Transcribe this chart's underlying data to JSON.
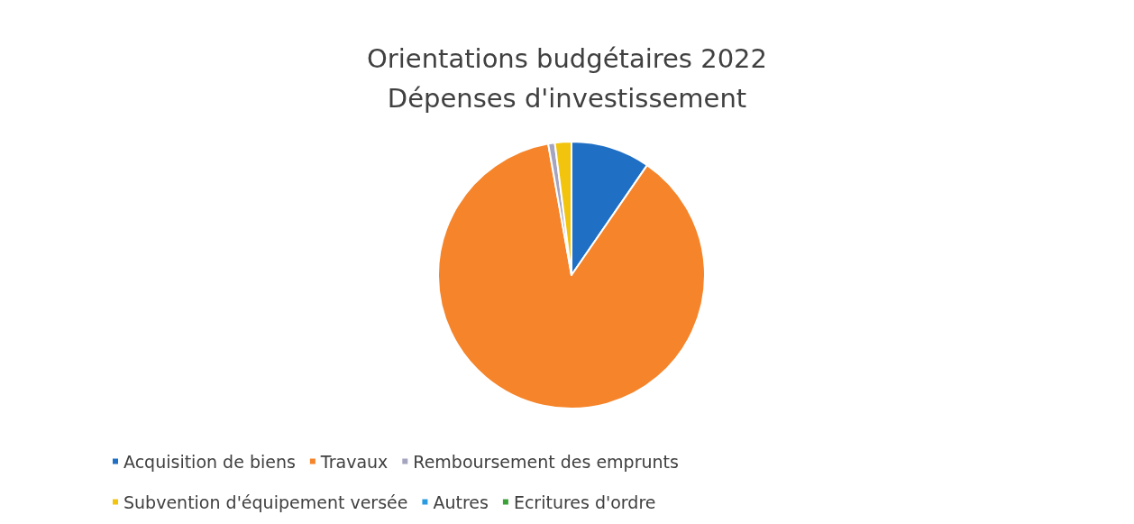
{
  "chart_data": {
    "type": "pie",
    "title": "Orientations budgétaires 2022\nDépenses d'investissement",
    "categories": [
      "Acquisition de biens",
      "Travaux",
      "Remboursement des emprunts",
      "Subvention d'équipement versée",
      "Autres",
      "Ecritures d'ordre"
    ],
    "values": [
      9.6,
      87.6,
      0.8,
      2.0,
      0,
      0
    ],
    "colors": [
      "#1f6fc5",
      "#f5842a",
      "#a5a5c0",
      "#f2c40e",
      "#2a9be0",
      "#3aa037"
    ],
    "legend": "bottom"
  }
}
